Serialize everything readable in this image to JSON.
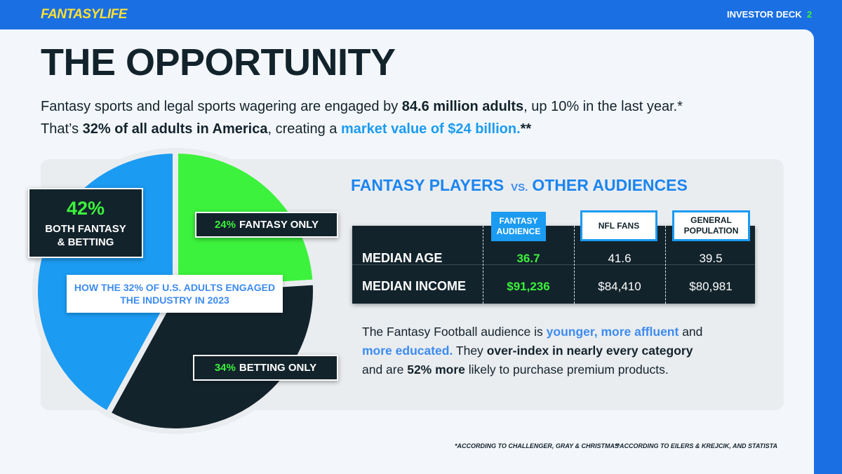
{
  "header": {
    "logo": "FANTASYLIFE",
    "section": "INVESTOR DECK",
    "page": "2"
  },
  "title": "THE OPPORTUNITY",
  "intro": [
    [
      {
        "text": "Fantasy sports and legal sports wagering are engaged by ",
        "style": "normal"
      },
      {
        "text": "84.6 million adults",
        "style": "bold"
      },
      {
        "text": ", up 10% in the last year.*",
        "style": "normal"
      }
    ],
    [
      {
        "text": "That’s ",
        "style": "normal"
      },
      {
        "text": "32% of all adults in America",
        "style": "bold"
      },
      {
        "text": ", creating a ",
        "style": "normal"
      },
      {
        "text": "market value of $24 billion.",
        "style": "accent"
      },
      {
        "text": "**",
        "style": "bold"
      }
    ]
  ],
  "chart_data": {
    "type": "pie",
    "title": "HOW THE 32% OF U.S. ADULTS ENGAGED THE INDUSTRY IN 2023",
    "categories": [
      "BOTH FANTASY & BETTING",
      "FANTASY ONLY",
      "BETTING ONLY"
    ],
    "values": [
      42,
      24,
      34
    ],
    "value_labels": [
      "42%",
      "24%",
      "34%"
    ],
    "colors": [
      "#1b9bf2",
      "#3cf23c",
      "#13232c"
    ]
  },
  "comparison": {
    "title": "FANTASY PLAYERS",
    "connector": "VS.",
    "title_end": "OTHER AUDIENCES",
    "columns": [
      "FANTASY AUDIENCE",
      "NFL FANS",
      "GENERAL POPULATION"
    ],
    "rows": [
      {
        "label": "MEDIAN AGE",
        "cells": [
          "36.7",
          "41.6",
          "39.5"
        ]
      },
      {
        "label": "MEDIAN INCOME",
        "cells": [
          "$91,236",
          "$84,410",
          "$80,981"
        ]
      }
    ]
  },
  "description": [
    [
      {
        "text": "The Fantasy Football audience is ",
        "style": "normal"
      },
      {
        "text": "younger",
        "style": "accent"
      },
      {
        "text": ", ",
        "style": "accent"
      },
      {
        "text": "more affluent",
        "style": "accent"
      },
      {
        "text": " and",
        "style": "normal"
      }
    ],
    [
      {
        "text": "more educated.",
        "style": "accent"
      },
      {
        "text": " They ",
        "style": "normal"
      },
      {
        "text": "over-index in nearly every category",
        "style": "bold"
      }
    ],
    [
      {
        "text": "and are ",
        "style": "normal"
      },
      {
        "text": "52% more",
        "style": "bold"
      },
      {
        "text": " likely to purchase premium products.",
        "style": "normal"
      }
    ]
  ],
  "footnotes": [
    "*ACCORDING TO CHALLENGER, GRAY & CHRISTMAS",
    "**ACCORDING TO EILERS & KREJCIK, AND STATISTA"
  ]
}
